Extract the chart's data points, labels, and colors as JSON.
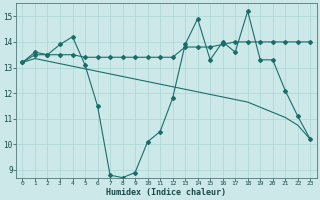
{
  "xlabel": "Humidex (Indice chaleur)",
  "bg_color": "#cce8e8",
  "line_color": "#1a6e6a",
  "grid_color": "#aad4d4",
  "xlim": [
    -0.5,
    23.5
  ],
  "ylim": [
    8.7,
    15.5
  ],
  "yticks": [
    9,
    10,
    11,
    12,
    13,
    14,
    15
  ],
  "xticks": [
    0,
    1,
    2,
    3,
    4,
    5,
    6,
    7,
    8,
    9,
    10,
    11,
    12,
    13,
    14,
    15,
    16,
    17,
    18,
    19,
    20,
    21,
    22,
    23
  ],
  "line1_x": [
    0,
    1,
    2,
    3,
    4,
    5,
    6,
    7,
    8,
    9,
    10,
    11,
    12,
    13,
    14,
    15,
    16,
    17,
    18,
    19,
    20,
    21,
    22,
    23
  ],
  "line1_y": [
    13.2,
    13.6,
    13.5,
    13.9,
    14.2,
    13.1,
    11.5,
    8.8,
    8.7,
    8.9,
    10.1,
    10.5,
    11.8,
    13.9,
    14.9,
    13.3,
    14.0,
    13.6,
    15.2,
    13.3,
    13.3,
    12.1,
    11.1,
    10.2
  ],
  "line2_x": [
    0,
    1,
    2,
    3,
    4,
    5,
    6,
    7,
    8,
    9,
    10,
    11,
    12,
    13,
    14,
    15,
    16,
    17,
    18,
    19,
    20,
    21,
    22,
    23
  ],
  "line2_y": [
    13.2,
    13.5,
    13.5,
    13.5,
    13.5,
    13.4,
    13.4,
    13.4,
    13.4,
    13.4,
    13.4,
    13.4,
    13.4,
    13.8,
    13.8,
    13.8,
    13.9,
    14.0,
    14.0,
    14.0,
    14.0,
    14.0,
    14.0,
    14.0
  ],
  "line3_x": [
    0,
    1,
    2,
    3,
    4,
    5,
    6,
    7,
    8,
    9,
    10,
    11,
    12,
    13,
    14,
    15,
    16,
    17,
    18,
    19,
    20,
    21,
    22,
    23
  ],
  "line3_y": [
    13.2,
    13.35,
    13.25,
    13.15,
    13.05,
    12.95,
    12.85,
    12.75,
    12.65,
    12.55,
    12.45,
    12.35,
    12.25,
    12.15,
    12.05,
    11.95,
    11.85,
    11.75,
    11.65,
    11.45,
    11.25,
    11.05,
    10.75,
    10.2
  ]
}
